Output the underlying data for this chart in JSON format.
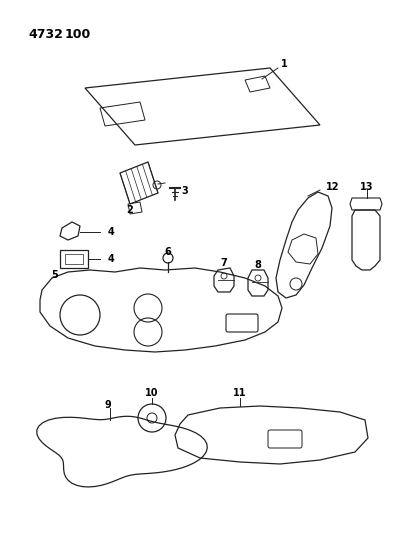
{
  "title1": "4732",
  "title2": "100",
  "background_color": "#ffffff",
  "line_color": "#222222",
  "text_color": "#000000",
  "figsize": [
    4.08,
    5.33
  ],
  "dpi": 100,
  "lw": 0.9
}
